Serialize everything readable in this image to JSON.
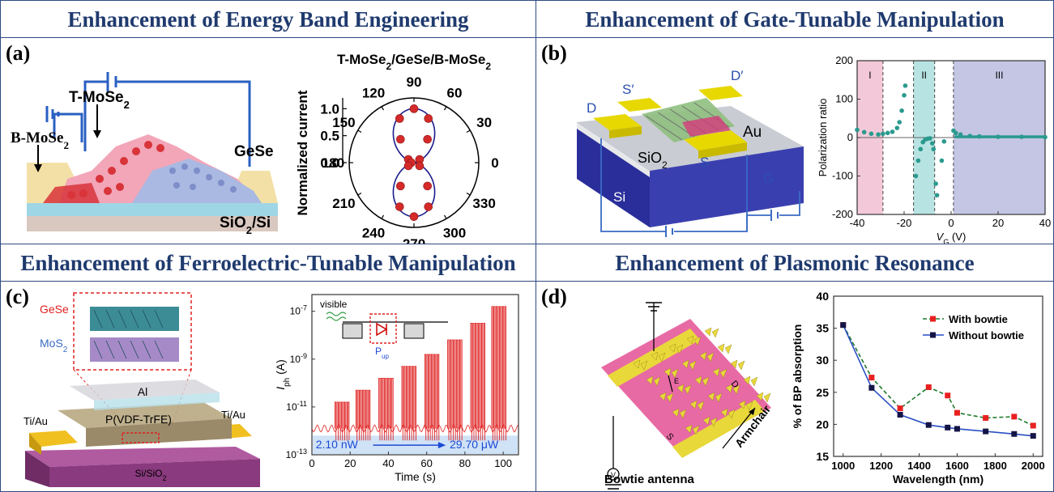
{
  "panels": {
    "a": {
      "title": "Enhancement of Energy Band Engineering",
      "label": "(a)",
      "device": {
        "bottom_layer": "B-MoSe",
        "top_layer": "T-MoSe",
        "sub": "2",
        "right": "GeSe",
        "substrate": "SiO",
        "substrate_sub": "2",
        "substrate_tail": "/Si"
      },
      "chart_data": {
        "type": "scatter",
        "projection": "polar",
        "title": "T-MoSe2/GeSe/B-MoSe2",
        "title_parts": [
          "T-MoSe",
          "2",
          "/GeSe/B-MoSe",
          "2"
        ],
        "ylabel": "Normalized current",
        "angle_ticks": [
          "0",
          "30",
          "60",
          "90",
          "120",
          "150",
          "180",
          "210",
          "240",
          "270",
          "300",
          "330"
        ],
        "radial_ticks": [
          "0.0",
          "0.5",
          "1.0"
        ],
        "rlim": [
          0,
          1.2
        ],
        "points": [
          {
            "theta": 90,
            "r": 1.0
          },
          {
            "theta": 72,
            "r": 0.86
          },
          {
            "theta": 108,
            "r": 0.86
          },
          {
            "theta": 60,
            "r": 0.5
          },
          {
            "theta": 120,
            "r": 0.5
          },
          {
            "theta": 30,
            "r": 0.12
          },
          {
            "theta": 150,
            "r": 0.12
          },
          {
            "theta": 180,
            "r": 0.05
          },
          {
            "theta": 270,
            "r": 1.0
          },
          {
            "theta": 252,
            "r": 0.86
          },
          {
            "theta": 288,
            "r": 0.86
          },
          {
            "theta": 240,
            "r": 0.5
          },
          {
            "theta": 300,
            "r": 0.5
          },
          {
            "theta": 210,
            "r": 0.12
          },
          {
            "theta": 330,
            "r": 0.12
          }
        ],
        "fit": "cos-squared",
        "colors": {
          "points": "#d42a2a",
          "fit": "#1c1c8c"
        }
      }
    },
    "b": {
      "title": "Enhancement of Gate-Tunable Manipulation",
      "label": "(b)",
      "device": {
        "s_prime": "S′",
        "d_prime": "D′",
        "d": "D",
        "s": "S",
        "au": "Au",
        "sio2": "SiO",
        "sio2_sub": "2",
        "si": "Si",
        "g": "G"
      },
      "chart_data": {
        "type": "scatter",
        "xlabel": "V",
        "xlabel_sub": "G",
        "xlabel_unit": " (V)",
        "ylabel": "Polarization ratio",
        "xlim": [
          -40,
          40
        ],
        "ylim": [
          -200,
          200
        ],
        "xticks": [
          "-40",
          "-20",
          "0",
          "20",
          "40"
        ],
        "yticks": [
          "-200",
          "-100",
          "0",
          "100",
          "200"
        ],
        "regions": [
          {
            "label": "I",
            "from": -40,
            "to": -29,
            "color": "#f3c9d9"
          },
          {
            "label": "II",
            "from": -16,
            "to": -7,
            "color": "#b8e3e3"
          },
          {
            "label": "III",
            "from": 1,
            "to": 40,
            "color": "#c4c6e4"
          }
        ],
        "series": [
          {
            "values": [
              [
                -40,
                20
              ],
              [
                -37,
                14
              ],
              [
                -34,
                10
              ],
              [
                -31,
                8
              ],
              [
                -29,
                10
              ],
              [
                -27,
                12
              ],
              [
                -25,
                15
              ],
              [
                -23,
                25
              ],
              [
                -22,
                40
              ],
              [
                -21,
                70
              ],
              [
                -20,
                110
              ],
              [
                -19.5,
                135
              ]
            ],
            "color": "#2a9a8e"
          },
          {
            "values": [
              [
                -15,
                -100
              ],
              [
                -14,
                -60
              ],
              [
                -13,
                -30
              ],
              [
                -12,
                -12
              ],
              [
                -11,
                -5
              ],
              [
                -10,
                -3
              ],
              [
                -9,
                -2
              ],
              [
                -8,
                -15
              ],
              [
                -7.5,
                -30
              ],
              [
                -6.5,
                -120
              ],
              [
                -6,
                -150
              ],
              [
                -4,
                -60
              ],
              [
                -3,
                -10
              ],
              [
                1,
                18
              ],
              [
                2,
                12
              ],
              [
                4,
                8
              ],
              [
                8,
                4
              ],
              [
                12,
                3
              ],
              [
                20,
                2
              ],
              [
                30,
                2
              ],
              [
                40,
                1
              ]
            ],
            "color": "#2a9a8e"
          }
        ]
      }
    },
    "c": {
      "title": "Enhancement of Ferroelectric-Tunable Manipulation",
      "label": "(c)",
      "device": {
        "gese": "GeSe",
        "mos2": "MoS",
        "mos2_sub": "2",
        "al": "Al",
        "pvdf": "P(VDF-TrFE)",
        "tiau_left": "Ti/Au",
        "tiau_right": "Ti/Au",
        "sisio2": "Si/SiO",
        "sisio2_sub": "2"
      },
      "chart_data": {
        "type": "line",
        "yscale": "log",
        "xlabel": "Time (s)",
        "ylabel": "I",
        "ylabel_sub": "ph",
        "ylabel_unit": " (A)",
        "xlim": [
          0,
          108
        ],
        "ylim_exponents": [
          -13,
          -6.3
        ],
        "xticks": [
          "0",
          "20",
          "40",
          "60",
          "80",
          "100"
        ],
        "ytick_base": "10",
        "ytick_exponents": [
          "-13",
          "-11",
          "-9",
          "-7"
        ],
        "inset": {
          "visible": "visible",
          "pup": "P",
          "pup_sub": "up"
        },
        "annotation_left": "2.10 nW",
        "annotation_right": "29.70 μW",
        "pulse_groups": [
          {
            "start": 12,
            "end": 20,
            "peak_exp": -10.8
          },
          {
            "start": 23,
            "end": 31,
            "peak_exp": -10.3
          },
          {
            "start": 35,
            "end": 43,
            "peak_exp": -9.8
          },
          {
            "start": 47,
            "end": 55,
            "peak_exp": -9.3
          },
          {
            "start": 59,
            "end": 67,
            "peak_exp": -8.8
          },
          {
            "start": 71,
            "end": 79,
            "peak_exp": -8.2
          },
          {
            "start": 83,
            "end": 91,
            "peak_exp": -7.5
          },
          {
            "start": 94,
            "end": 102,
            "peak_exp": -6.8
          }
        ],
        "colors": {
          "signal": "#e02020",
          "annotation": "#1d4ad6"
        }
      }
    },
    "d": {
      "title": "Enhancement of  Plasmonic Resonance",
      "label": "(d)",
      "device": {
        "caption": "Bowtie antenna",
        "armchair": "Armchair",
        "d": "D",
        "s": "S",
        "e": "E",
        "v": "V"
      },
      "chart_data": {
        "type": "line",
        "xlabel": "Wavelength (nm)",
        "ylabel": "% of BP absorption",
        "xlim": [
          950,
          2050
        ],
        "ylim": [
          15,
          40
        ],
        "xticks": [
          "1000",
          "1200",
          "1400",
          "1600",
          "1800",
          "2000"
        ],
        "yticks": [
          "15",
          "20",
          "25",
          "30",
          "35",
          "40"
        ],
        "x": [
          1000,
          1150,
          1300,
          1450,
          1550,
          1600,
          1750,
          1900,
          2000
        ],
        "series": [
          {
            "name": "With bowtie",
            "values": [
              35.5,
              27.3,
              22.5,
              25.8,
              24.5,
              21.8,
              21.0,
              21.2,
              19.8
            ],
            "color": "#e82020"
          },
          {
            "name": "Without bowtie",
            "values": [
              35.5,
              25.7,
              21.5,
              19.9,
              19.5,
              19.3,
              18.9,
              18.5,
              18.2
            ],
            "color": "#141446"
          }
        ],
        "legend": "top-right"
      }
    }
  }
}
